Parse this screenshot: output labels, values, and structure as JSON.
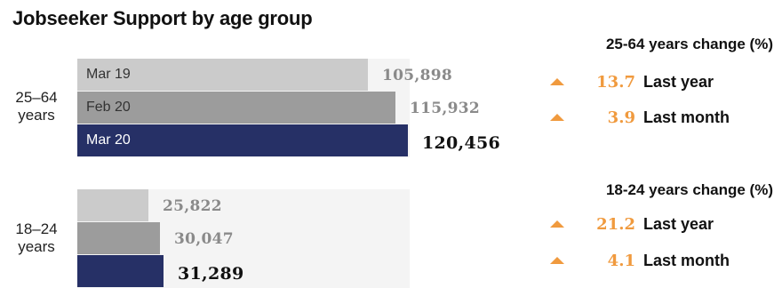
{
  "title": "Jobseeker Support by age group",
  "colors": {
    "mar19": "#cbcbcb",
    "feb20": "#9c9c9c",
    "mar20": "#263066",
    "increase": "#f09a3e",
    "background_band": "#f4f4f4"
  },
  "chart_data": {
    "type": "bar",
    "orientation": "horizontal",
    "title": "Jobseeker Support by age group",
    "categories": [
      "25–64 years",
      "18–24 years"
    ],
    "series": [
      {
        "name": "Mar 19",
        "values": [
          105898,
          25822
        ]
      },
      {
        "name": "Feb 20",
        "values": [
          115932,
          30047
        ]
      },
      {
        "name": "Mar 20",
        "values": [
          120456,
          31289
        ]
      }
    ],
    "value_labels": [
      [
        "105,898",
        "115,932",
        "120,456"
      ],
      [
        "25,822",
        "30,047",
        "31,289"
      ]
    ],
    "xlim": [
      0,
      120456
    ]
  },
  "groups": [
    {
      "label_line1": "25–64",
      "label_line2": "years",
      "bars": [
        {
          "label": "Mar 19",
          "value": 105898,
          "value_text": "105,898",
          "icon_color": "mar19"
        },
        {
          "label": "Feb 20",
          "value": 115932,
          "value_text": "115,932",
          "icon_color": "feb20"
        },
        {
          "label": "Mar 20",
          "value": 120456,
          "value_text": "120,456",
          "icon_color": "mar20"
        }
      ],
      "change": {
        "heading": "25-64 years change (%)",
        "rows": [
          {
            "icon": "up-triangle-icon",
            "value": "13.7",
            "label": "Last year"
          },
          {
            "icon": "up-triangle-icon",
            "value": "3.9",
            "label": "Last month"
          }
        ]
      }
    },
    {
      "label_line1": "18–24",
      "label_line2": "years",
      "bars": [
        {
          "label": "",
          "value": 25822,
          "value_text": "25,822",
          "icon_color": "mar19"
        },
        {
          "label": "",
          "value": 30047,
          "value_text": "30,047",
          "icon_color": "feb20"
        },
        {
          "label": "",
          "value": 31289,
          "value_text": "31,289",
          "icon_color": "mar20"
        }
      ],
      "change": {
        "heading": "18-24 years change (%)",
        "rows": [
          {
            "icon": "up-triangle-icon",
            "value": "21.2",
            "label": "Last year"
          },
          {
            "icon": "up-triangle-icon",
            "value": "4.1",
            "label": "Last month"
          }
        ]
      }
    }
  ]
}
